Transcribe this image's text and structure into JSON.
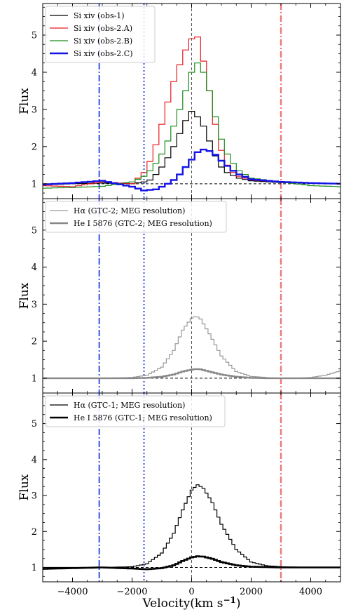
{
  "chart_data": [
    {
      "type": "line",
      "ylabel": "Flux",
      "xlim": [
        -5000,
        5000
      ],
      "ylim": [
        0.6,
        5.85
      ],
      "yticks": [
        1,
        2,
        3,
        4,
        5
      ],
      "ytick_labels": [
        "1",
        "2",
        "3",
        "4",
        "5"
      ],
      "legend_position": "top-left",
      "reference_lines": {
        "continuum": 1,
        "zero_velocity": 0,
        "blue_dashdot": -3100,
        "blue_dotted": -1600,
        "red_dashdot": 3000
      },
      "series": [
        {
          "name": "Si xiv (obs-1)",
          "color": "#000000",
          "width": 1.2,
          "x": [
            -5000,
            -4000,
            -3000,
            -2000,
            -1600,
            -1400,
            -1200,
            -1000,
            -800,
            -600,
            -400,
            -200,
            0,
            200,
            400,
            600,
            800,
            1000,
            1200,
            1400,
            1600,
            2000,
            3000,
            4000,
            5000
          ],
          "y": [
            0.97,
            1.0,
            1.02,
            1.0,
            1.05,
            1.1,
            1.25,
            1.45,
            1.7,
            2.0,
            2.35,
            2.7,
            2.95,
            2.8,
            2.55,
            2.15,
            1.75,
            1.45,
            1.3,
            1.22,
            1.15,
            1.08,
            1.03,
            1.02,
            1.0
          ]
        },
        {
          "name": "Si xiv (obs-2.A)",
          "color": "#e8191f",
          "width": 1.2,
          "x": [
            -5000,
            -4000,
            -3000,
            -2000,
            -1800,
            -1600,
            -1400,
            -1200,
            -1000,
            -800,
            -600,
            -400,
            -200,
            0,
            200,
            400,
            600,
            800,
            1000,
            1200,
            1400,
            1600,
            2000,
            3000,
            4000,
            5000
          ],
          "y": [
            0.95,
            0.92,
            1.05,
            1.0,
            1.15,
            1.3,
            1.6,
            2.05,
            2.6,
            3.2,
            3.75,
            4.2,
            4.6,
            4.9,
            4.95,
            4.3,
            3.5,
            2.6,
            1.9,
            1.5,
            1.3,
            1.2,
            1.1,
            1.05,
            1.02,
            1.0
          ]
        },
        {
          "name": "Si xiv (obs-2.B)",
          "color": "#1a8c1a",
          "width": 1.2,
          "x": [
            -5000,
            -4000,
            -3000,
            -2000,
            -1800,
            -1600,
            -1400,
            -1200,
            -1000,
            -800,
            -600,
            -400,
            -200,
            0,
            200,
            400,
            600,
            800,
            1000,
            1200,
            1400,
            1600,
            2000,
            3000,
            4000,
            5000
          ],
          "y": [
            0.88,
            0.9,
            0.93,
            1.05,
            1.12,
            1.2,
            1.35,
            1.55,
            1.8,
            2.15,
            2.55,
            3.0,
            3.5,
            4.0,
            4.25,
            4.0,
            3.5,
            2.8,
            2.2,
            1.8,
            1.55,
            1.35,
            1.15,
            1.05,
            0.95,
            0.92
          ]
        },
        {
          "name": "Si xiv (obs-2.C)",
          "color": "#1414e6",
          "width": 2.4,
          "x": [
            -5000,
            -4000,
            -3000,
            -2000,
            -1600,
            -1200,
            -1000,
            -800,
            -600,
            -400,
            -200,
            0,
            200,
            400,
            600,
            800,
            1000,
            1200,
            1400,
            1600,
            2000,
            3000,
            4000,
            5000
          ],
          "y": [
            0.98,
            1.02,
            1.08,
            0.92,
            0.82,
            0.85,
            0.92,
            1.0,
            1.1,
            1.25,
            1.45,
            1.65,
            1.85,
            1.92,
            1.88,
            1.78,
            1.62,
            1.48,
            1.35,
            1.25,
            1.12,
            1.05,
            1.02,
            1.0
          ]
        }
      ]
    },
    {
      "type": "line",
      "ylabel": "Flux",
      "xlim": [
        -5000,
        5000
      ],
      "ylim": [
        0.6,
        5.85
      ],
      "yticks": [
        1,
        2,
        3,
        4,
        5
      ],
      "ytick_labels": [
        "1",
        "2",
        "3",
        "4",
        "5"
      ],
      "legend_position": "top-left",
      "reference_lines": {
        "continuum": 1,
        "zero_velocity": 0,
        "blue_dashdot": -3100,
        "blue_dotted": -1600,
        "red_dashdot": 3000
      },
      "series": [
        {
          "name": "Hα (GTC-2; MEG resolution)",
          "color": "#999999",
          "width": 1.2,
          "x": [
            -5000,
            -4000,
            -3000,
            -2000,
            -1500,
            -1000,
            -600,
            -300,
            0,
            150,
            300,
            600,
            1000,
            1500,
            2000,
            2500,
            3000,
            3500,
            4000,
            4500,
            5000
          ],
          "y": [
            1.0,
            1.0,
            1.0,
            1.02,
            1.08,
            1.3,
            1.75,
            2.3,
            2.62,
            2.68,
            2.6,
            2.2,
            1.6,
            1.18,
            1.05,
            1.02,
            1.0,
            1.0,
            1.02,
            1.08,
            1.2
          ]
        },
        {
          "name": "He I 5876 (GTC-2; MEG resolution)",
          "color": "#888888",
          "width": 2.4,
          "x": [
            -5000,
            -4000,
            -3000,
            -2000,
            -1500,
            -1000,
            -600,
            -300,
            0,
            150,
            300,
            600,
            1000,
            1500,
            2000,
            2500,
            3000,
            4000,
            5000
          ],
          "y": [
            1.0,
            1.0,
            1.0,
            1.0,
            1.01,
            1.04,
            1.1,
            1.18,
            1.23,
            1.25,
            1.24,
            1.18,
            1.1,
            1.04,
            1.01,
            1.0,
            1.0,
            1.0,
            1.0
          ]
        }
      ]
    },
    {
      "type": "line",
      "xlabel": "Velocity(km s",
      "xlabel_sup": "−1",
      "xlabel_close": ")",
      "ylabel": "Flux",
      "xlim": [
        -5000,
        5000
      ],
      "ylim": [
        0.6,
        5.85
      ],
      "xticks": [
        -4000,
        -2000,
        0,
        2000,
        4000
      ],
      "xtick_labels": [
        "−4000",
        "−2000",
        "0",
        "2000",
        "4000"
      ],
      "yticks": [
        1,
        2,
        3,
        4,
        5
      ],
      "ytick_labels": [
        "1",
        "2",
        "3",
        "4",
        "5"
      ],
      "legend_position": "top-left",
      "reference_lines": {
        "continuum": 1,
        "zero_velocity": 0,
        "blue_dashdot": -3100,
        "blue_dotted": -1600,
        "red_dashdot": 3000
      },
      "series": [
        {
          "name": "Hα (GTC-1; MEG resolution)",
          "color": "#000000",
          "width": 1.2,
          "x": [
            -5000,
            -4000,
            -3000,
            -2000,
            -1500,
            -1000,
            -600,
            -300,
            0,
            200,
            400,
            700,
            1000,
            1500,
            2000,
            2500,
            3000,
            4000,
            5000
          ],
          "y": [
            1.0,
            1.0,
            1.0,
            1.02,
            1.1,
            1.4,
            1.95,
            2.6,
            3.15,
            3.3,
            3.2,
            2.8,
            2.2,
            1.5,
            1.15,
            1.05,
            1.02,
            1.0,
            1.0
          ]
        },
        {
          "name": "He I 5876 (GTC-1; MEG resolution)",
          "color": "#000000",
          "width": 2.6,
          "x": [
            -5000,
            -4000,
            -3000,
            -2000,
            -1500,
            -1000,
            -600,
            -300,
            0,
            200,
            400,
            700,
            1000,
            1500,
            2000,
            2500,
            3000,
            4000,
            5000
          ],
          "y": [
            0.96,
            0.98,
            1.0,
            0.97,
            0.95,
            0.98,
            1.06,
            1.18,
            1.28,
            1.31,
            1.3,
            1.24,
            1.15,
            1.06,
            1.02,
            1.01,
            1.0,
            1.0,
            1.0
          ]
        }
      ]
    }
  ]
}
